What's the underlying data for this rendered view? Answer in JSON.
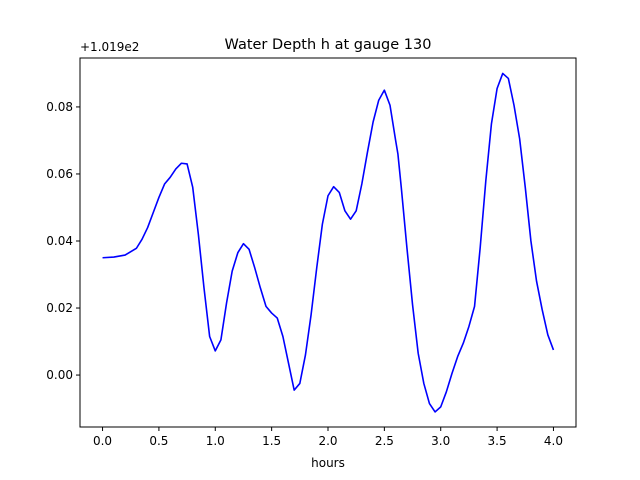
{
  "chart_data": {
    "type": "line",
    "title": "Water Depth h at gauge 130",
    "xlabel": "hours",
    "ylabel": "",
    "y_offset_text": "+1.019e2",
    "xlim": [
      -0.2,
      4.2
    ],
    "ylim": [
      -0.0155,
      0.0946
    ],
    "x_ticks": [
      0.0,
      0.5,
      1.0,
      1.5,
      2.0,
      2.5,
      3.0,
      3.5,
      4.0
    ],
    "x_tick_labels": [
      "0.0",
      "0.5",
      "1.0",
      "1.5",
      "2.0",
      "2.5",
      "3.0",
      "3.5",
      "4.0"
    ],
    "y_ticks": [
      0.0,
      0.02,
      0.04,
      0.06,
      0.08
    ],
    "y_tick_labels": [
      "0.00",
      "0.02",
      "0.04",
      "0.06",
      "0.08"
    ],
    "grid": false,
    "series": [
      {
        "color": "#0000ff",
        "x": [
          0.0,
          0.1,
          0.2,
          0.3,
          0.35,
          0.4,
          0.45,
          0.5,
          0.55,
          0.6,
          0.65,
          0.7,
          0.75,
          0.8,
          0.85,
          0.9,
          0.95,
          1.0,
          1.05,
          1.1,
          1.15,
          1.2,
          1.25,
          1.3,
          1.35,
          1.4,
          1.45,
          1.5,
          1.55,
          1.6,
          1.65,
          1.7,
          1.75,
          1.8,
          1.85,
          1.9,
          1.95,
          2.0,
          2.05,
          2.1,
          2.15,
          2.2,
          2.25,
          2.3,
          2.35,
          2.4,
          2.45,
          2.5,
          2.55,
          2.6,
          2.62,
          2.65,
          2.7,
          2.75,
          2.8,
          2.85,
          2.9,
          2.95,
          3.0,
          3.05,
          3.1,
          3.15,
          3.2,
          3.25,
          3.3,
          3.35,
          3.4,
          3.45,
          3.5,
          3.55,
          3.6,
          3.65,
          3.7,
          3.75,
          3.8,
          3.85,
          3.9,
          3.95,
          4.0
        ],
        "y": [
          0.035,
          0.0352,
          0.0358,
          0.0378,
          0.0405,
          0.044,
          0.0485,
          0.053,
          0.057,
          0.059,
          0.0615,
          0.0632,
          0.063,
          0.056,
          0.042,
          0.026,
          0.0115,
          0.0072,
          0.0105,
          0.0215,
          0.031,
          0.0365,
          0.0392,
          0.0375,
          0.032,
          0.026,
          0.0205,
          0.0185,
          0.017,
          0.0115,
          0.0035,
          -0.0045,
          -0.0025,
          0.006,
          0.018,
          0.032,
          0.045,
          0.0535,
          0.0562,
          0.0545,
          0.049,
          0.0465,
          0.049,
          0.057,
          0.0665,
          0.0755,
          0.082,
          0.085,
          0.0805,
          0.07,
          0.066,
          0.056,
          0.038,
          0.021,
          0.0065,
          -0.0025,
          -0.0085,
          -0.011,
          -0.0095,
          -0.005,
          0.0005,
          0.0055,
          0.0095,
          0.0145,
          0.0205,
          0.038,
          0.058,
          0.075,
          0.0855,
          0.09,
          0.0885,
          0.0805,
          0.0705,
          0.056,
          0.04,
          0.028,
          0.0195,
          0.012,
          0.0075
        ]
      }
    ]
  }
}
